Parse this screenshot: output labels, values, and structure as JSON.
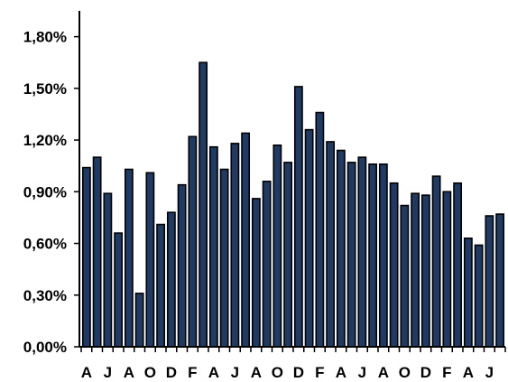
{
  "chart_data": {
    "type": "bar",
    "title": "",
    "xlabel": "",
    "ylabel": "",
    "ylim": [
      0,
      1.95
    ],
    "grid": false,
    "bar_color": "#1F3B63",
    "bar_edge_color": "#000000",
    "y_ticks": [
      {
        "value": 0.0,
        "label": "0,00%"
      },
      {
        "value": 0.3,
        "label": "0,30%"
      },
      {
        "value": 0.6,
        "label": "0,60%"
      },
      {
        "value": 0.9,
        "label": "0,90%"
      },
      {
        "value": 1.2,
        "label": "1,20%"
      },
      {
        "value": 1.5,
        "label": "1,50%"
      },
      {
        "value": 1.8,
        "label": "1,80%"
      }
    ],
    "x_tick_labels": [
      {
        "index": 0,
        "label": "A"
      },
      {
        "index": 2,
        "label": "J"
      },
      {
        "index": 4,
        "label": "A"
      },
      {
        "index": 6,
        "label": "O"
      },
      {
        "index": 8,
        "label": "D"
      },
      {
        "index": 10,
        "label": "F"
      },
      {
        "index": 12,
        "label": "A"
      },
      {
        "index": 14,
        "label": "J"
      },
      {
        "index": 16,
        "label": "A"
      },
      {
        "index": 18,
        "label": "O"
      },
      {
        "index": 20,
        "label": "D"
      },
      {
        "index": 22,
        "label": "F"
      },
      {
        "index": 24,
        "label": "A"
      },
      {
        "index": 26,
        "label": "J"
      },
      {
        "index": 28,
        "label": "A"
      },
      {
        "index": 30,
        "label": "O"
      },
      {
        "index": 32,
        "label": "D"
      },
      {
        "index": 34,
        "label": "F"
      },
      {
        "index": 36,
        "label": "A"
      },
      {
        "index": 38,
        "label": "J"
      }
    ],
    "values": [
      1.04,
      1.1,
      0.89,
      0.66,
      1.03,
      0.31,
      1.01,
      0.71,
      0.78,
      0.94,
      1.22,
      1.65,
      1.16,
      1.03,
      1.18,
      1.24,
      0.86,
      0.96,
      1.17,
      1.07,
      1.51,
      1.26,
      1.36,
      1.19,
      1.14,
      1.07,
      1.1,
      1.06,
      1.06,
      0.95,
      0.82,
      0.89,
      0.88,
      0.99,
      0.9,
      0.95,
      0.63,
      0.59,
      0.76,
      0.77
    ]
  }
}
